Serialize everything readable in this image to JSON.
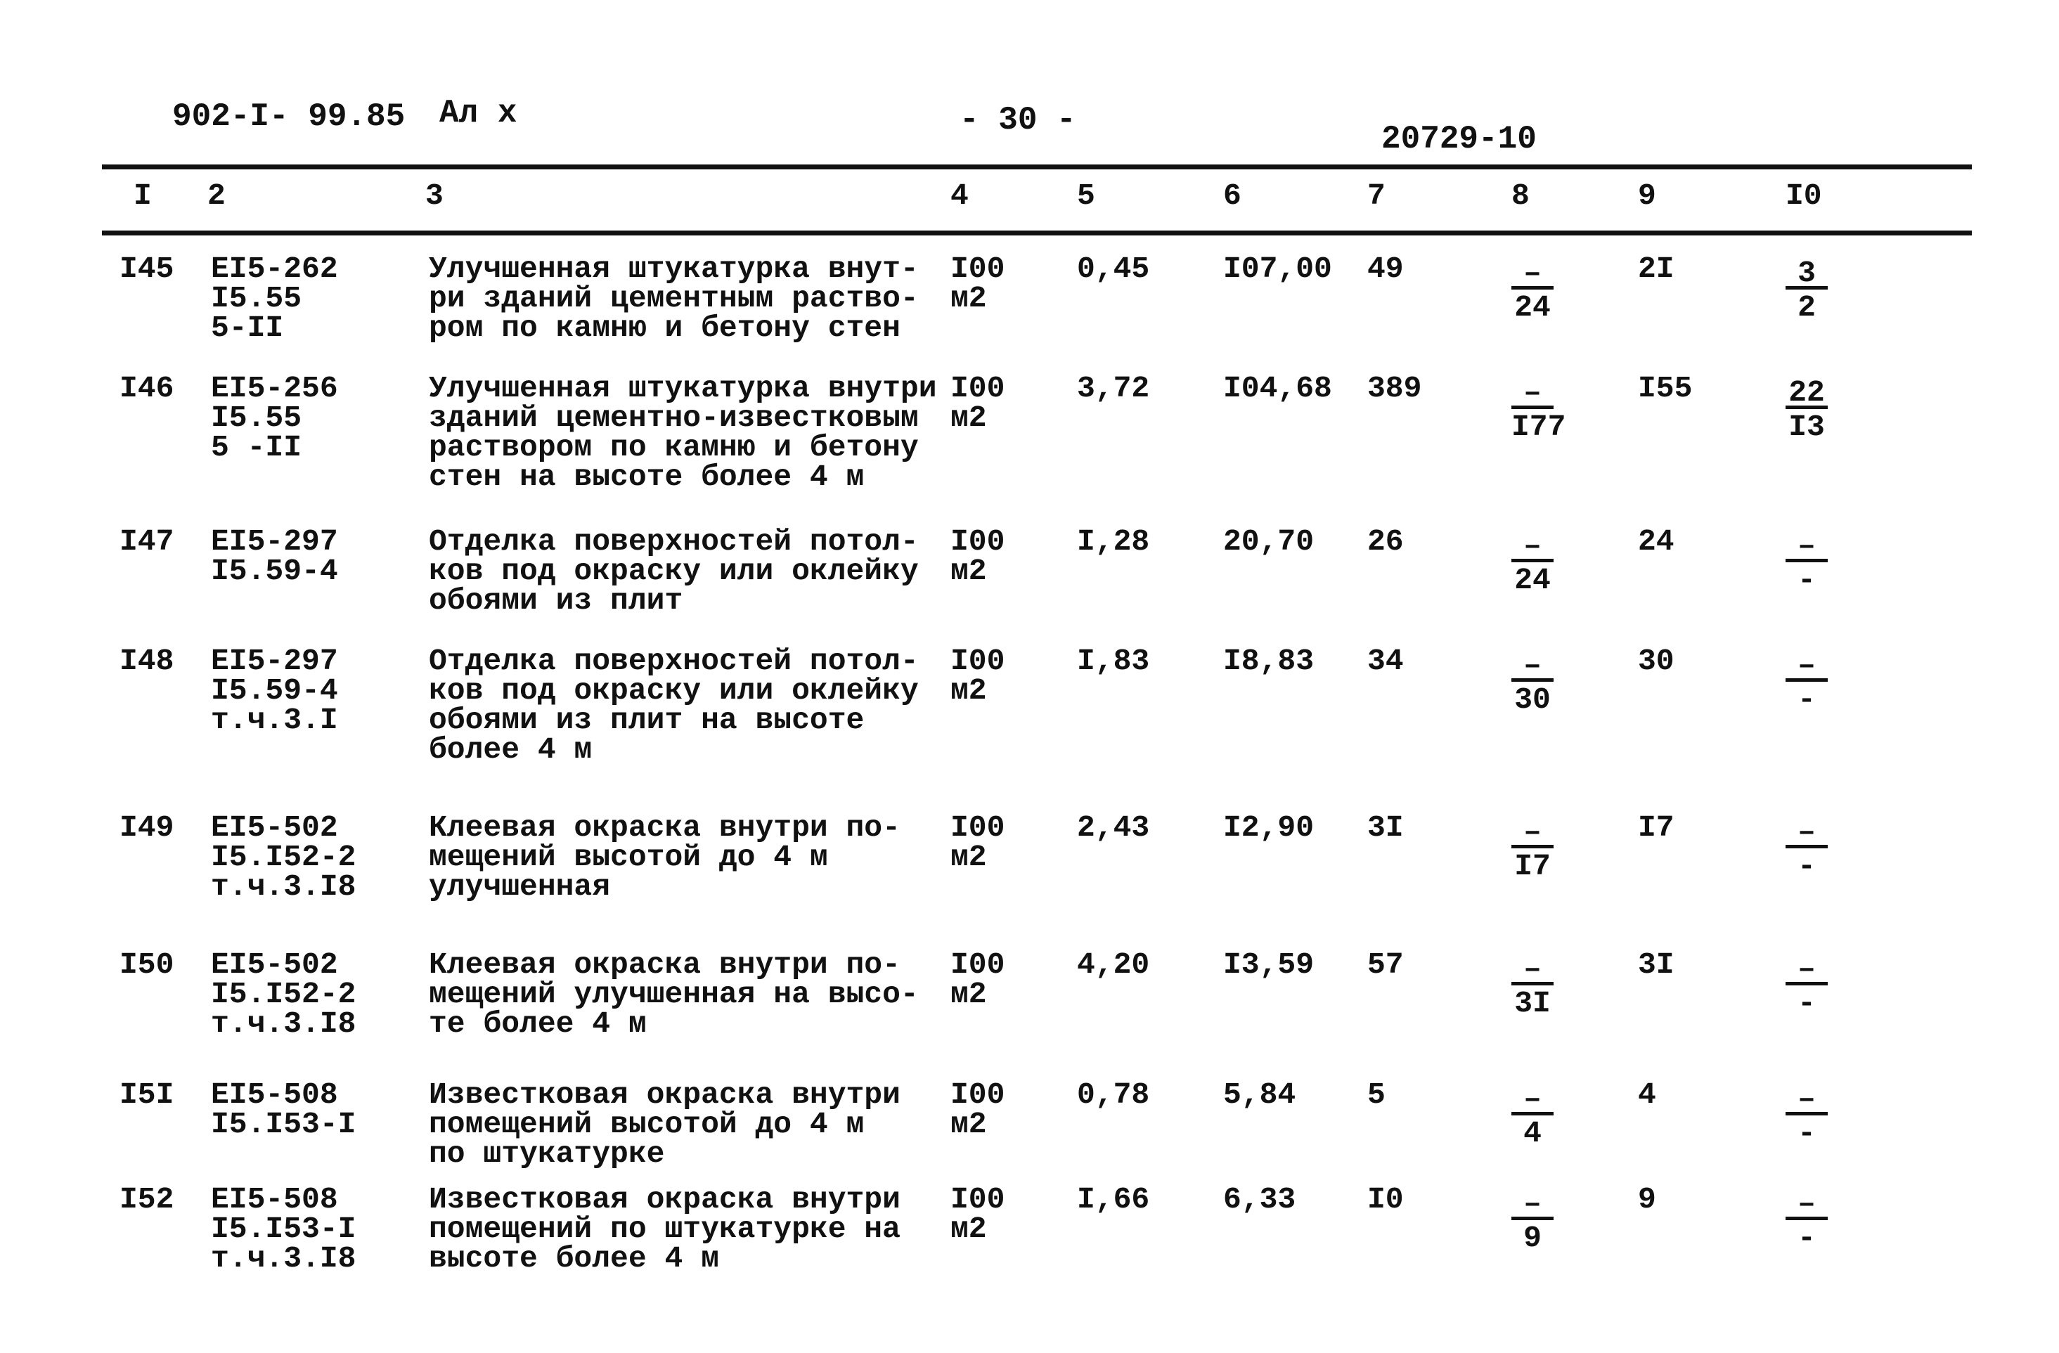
{
  "header": {
    "doc_code": "902-I- 99.85",
    "album": "Ал х",
    "page": "- 30 -",
    "inventory": "20729-10"
  },
  "columns": [
    "I",
    "2",
    "3",
    "4",
    "5",
    "6",
    "7",
    "8",
    "9",
    "I0"
  ],
  "rows": [
    {
      "n": "I45",
      "code": [
        "EI5-262",
        "I5.55",
        "5-II"
      ],
      "desc": [
        "Улучшенная штукатурка внут-",
        "ри зданий цементным раство-",
        "ром по камню и бетону стен"
      ],
      "unit": [
        "I00",
        "м2"
      ],
      "c5": "0,45",
      "c6": "I07,00",
      "c7": "49",
      "c8": {
        "top": "–",
        "bottom": "24"
      },
      "c9": "2I",
      "c10": {
        "top": "3",
        "bottom": "2"
      }
    },
    {
      "n": "I46",
      "code": [
        "EI5-256",
        "I5.55",
        "5 -II"
      ],
      "desc": [
        "Улучшенная штукатурка внутри",
        "зданий цементно-известковым",
        "раствором по камню и бетону",
        "стен на высоте более 4 м"
      ],
      "unit": [
        "I00",
        "м2"
      ],
      "c5": "3,72",
      "c6": "I04,68",
      "c7": "389",
      "c8": {
        "top": "–",
        "bottom": "I77"
      },
      "c9": "I55",
      "c10": {
        "top": "22",
        "bottom": "I3"
      }
    },
    {
      "n": "I47",
      "code": [
        "EI5-297",
        "I5.59-4"
      ],
      "desc": [
        "Отделка поверхностей потол-",
        "ков под окраску или оклейку",
        "обоями из плит"
      ],
      "unit": [
        "I00",
        "м2"
      ],
      "c5": "I,28",
      "c6": "20,70",
      "c7": "26",
      "c8": {
        "top": "–",
        "bottom": "24"
      },
      "c9": "24",
      "c10": {
        "top": "–",
        "bottom": "-"
      }
    },
    {
      "n": "I48",
      "code": [
        "EI5-297",
        "I5.59-4",
        "т.ч.3.I"
      ],
      "desc": [
        "Отделка поверхностей потол-",
        "ков под окраску или оклейку",
        "обоями из плит на высоте",
        "более 4 м"
      ],
      "unit": [
        "I00",
        "м2"
      ],
      "c5": "I,83",
      "c6": "I8,83",
      "c7": "34",
      "c8": {
        "top": "–",
        "bottom": "30"
      },
      "c9": "30",
      "c10": {
        "top": "–",
        "bottom": "-"
      }
    },
    {
      "n": "I49",
      "code": [
        "EI5-502",
        "I5.I52-2",
        "т.ч.3.I8"
      ],
      "desc": [
        "Клеевая окраска внутри по-",
        "мещений высотой до 4 м",
        "улучшенная"
      ],
      "unit": [
        "I00",
        "м2"
      ],
      "c5": "2,43",
      "c6": "I2,90",
      "c7": "3I",
      "c8": {
        "top": "–",
        "bottom": "I7"
      },
      "c9": "I7",
      "c10": {
        "top": "–",
        "bottom": "-"
      }
    },
    {
      "n": "I50",
      "code": [
        "EI5-502",
        "I5.I52-2",
        "т.ч.3.I8"
      ],
      "desc": [
        "Клеевая окраска внутри по-",
        "мещений улучшенная на высо-",
        "те более 4 м"
      ],
      "unit": [
        "I00",
        "м2"
      ],
      "c5": "4,20",
      "c6": "I3,59",
      "c7": "57",
      "c8": {
        "top": "–",
        "bottom": "3I"
      },
      "c9": "3I",
      "c10": {
        "top": "–",
        "bottom": "-"
      }
    },
    {
      "n": "I5I",
      "code": [
        "EI5-508",
        "I5.I53-I"
      ],
      "desc": [
        "Известковая окраска внутри",
        "помещений высотой до 4 м",
        "по штукатурке"
      ],
      "unit": [
        "I00",
        "м2"
      ],
      "c5": "0,78",
      "c6": "5,84",
      "c7": "5",
      "c8": {
        "top": "–",
        "bottom": "4"
      },
      "c9": "4",
      "c10": {
        "top": "–",
        "bottom": "-"
      }
    },
    {
      "n": "I52",
      "code": [
        "EI5-508",
        "I5.I53-I",
        "т.ч.3.I8"
      ],
      "desc": [
        "Известковая окраска внутри",
        "помещений по штукатурке на",
        "высоте более 4 м"
      ],
      "unit": [
        "I00",
        "м2"
      ],
      "c5": "I,66",
      "c6": "6,33",
      "c7": "I0",
      "c8": {
        "top": "–",
        "bottom": "9"
      },
      "c9": "9",
      "c10": {
        "top": "–",
        "bottom": "-"
      }
    }
  ]
}
